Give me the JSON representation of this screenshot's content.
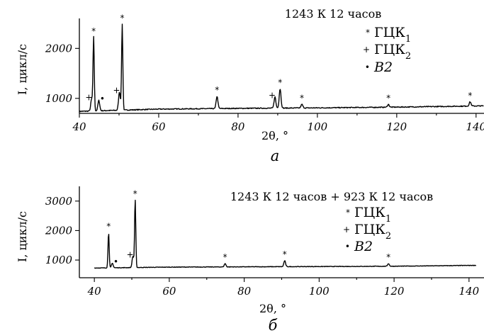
{
  "chart_data": [
    {
      "type": "line",
      "title": "1243 К  12 часов",
      "xlabel": "2θ, °",
      "ylabel": "I, цикл/с",
      "caption": "а",
      "xlim": [
        40,
        142
      ],
      "ylim": [
        700,
        2600
      ],
      "x_ticks": [
        40,
        60,
        80,
        100,
        120,
        140
      ],
      "y_ticks": [
        1000,
        2000
      ],
      "baseline": [
        [
          40,
          740
        ],
        [
          60,
          785
        ],
        [
          80,
          800
        ],
        [
          100,
          810
        ],
        [
          120,
          825
        ],
        [
          142,
          850
        ]
      ],
      "peaks": [
        {
          "x": 43.6,
          "y": 2220,
          "marker": "*"
        },
        {
          "x": 50.8,
          "y": 2480,
          "marker": "*"
        },
        {
          "x": 74.7,
          "y": 1040,
          "marker": "*"
        },
        {
          "x": 90.6,
          "y": 1190,
          "marker": "*"
        },
        {
          "x": 96.1,
          "y": 880,
          "marker": "*"
        },
        {
          "x": 117.9,
          "y": 880,
          "marker": "*"
        },
        {
          "x": 138.5,
          "y": 930,
          "marker": "*"
        },
        {
          "x": 43.1,
          "y": 990,
          "marker": "+"
        },
        {
          "x": 50.1,
          "y": 1130,
          "marker": "+"
        },
        {
          "x": 89.3,
          "y": 1030,
          "marker": "+"
        },
        {
          "x": 44.9,
          "y": 960,
          "marker": "•"
        }
      ],
      "legend": {
        "position": "top-right",
        "entries": [
          {
            "marker": "*",
            "label": "ГЦК",
            "sub": "1"
          },
          {
            "marker": "+",
            "label": "ГЦК",
            "sub": "2"
          },
          {
            "marker": "•",
            "label": "B2",
            "sub": ""
          }
        ]
      }
    },
    {
      "type": "line",
      "title": "1243 К 12 часов + 923 К 12 часов",
      "xlabel": "2θ, °",
      "ylabel": "I, цикл/с",
      "caption": "б",
      "xlim": [
        36,
        144
      ],
      "ylim": [
        400,
        3500
      ],
      "x_ticks": [
        40,
        60,
        80,
        100,
        120,
        140
      ],
      "y_ticks": [
        1000,
        2000,
        3000
      ],
      "baseline": [
        [
          40,
          730
        ],
        [
          60,
          760
        ],
        [
          80,
          770
        ],
        [
          100,
          780
        ],
        [
          120,
          790
        ],
        [
          142,
          820
        ]
      ],
      "peaks": [
        {
          "x": 43.8,
          "y": 1920,
          "marker": "*"
        },
        {
          "x": 50.9,
          "y": 3030,
          "marker": "*"
        },
        {
          "x": 74.9,
          "y": 880,
          "marker": "*"
        },
        {
          "x": 90.8,
          "y": 980,
          "marker": "*"
        },
        {
          "x": 118.5,
          "y": 880,
          "marker": "*"
        },
        {
          "x": 50.3,
          "y": 1130,
          "marker": "+"
        },
        {
          "x": 44.8,
          "y": 890,
          "marker": "•"
        }
      ],
      "legend": {
        "position": "top-right",
        "entries": [
          {
            "marker": "*",
            "label": "ГЦК",
            "sub": "1"
          },
          {
            "marker": "+",
            "label": "ГЦК",
            "sub": "2"
          },
          {
            "marker": "•",
            "label": "B2",
            "sub": ""
          }
        ]
      }
    }
  ]
}
